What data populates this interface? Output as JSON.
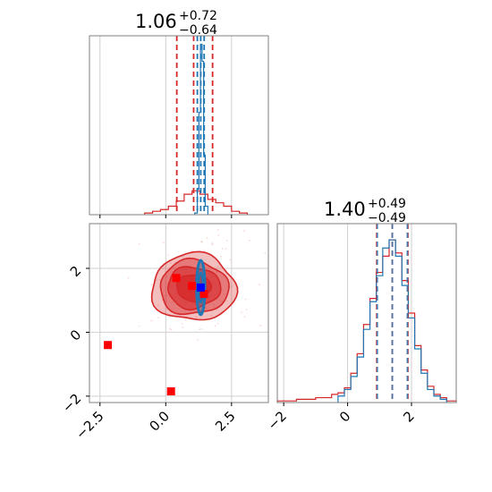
{
  "colors": {
    "red": "#d62728",
    "blue": "#1f77b4",
    "marker_red": "#ff0000",
    "marker_blue": "#0000ff",
    "grid": "#d0d0d0",
    "spine": "#7f7f7f"
  },
  "chart_data": [
    {
      "type": "line",
      "panel": "marginal-param-1",
      "title": {
        "value": "1.06",
        "upper": "+0.72",
        "lower": "−0.64"
      },
      "xlim": [
        -2.9,
        3.9
      ],
      "x_ticks": [
        -2.5,
        0.0,
        2.5
      ],
      "ylim": [
        0,
        1.05
      ],
      "grid": true,
      "series": [
        {
          "color": "#d62728",
          "histogram_edges": [
            -0.8,
            -0.5,
            -0.2,
            0.1,
            0.4,
            0.7,
            1.0,
            1.3,
            1.6,
            1.9,
            2.2,
            2.5,
            2.8,
            3.1
          ],
          "histogram_heights": [
            0.01,
            0.02,
            0.03,
            0.05,
            0.08,
            0.12,
            0.14,
            0.12,
            0.09,
            0.07,
            0.05,
            0.02,
            0.01
          ]
        },
        {
          "color": "#1f77b4",
          "histogram_edges": [
            1.1,
            1.2,
            1.26,
            1.32,
            1.38,
            1.44,
            1.5,
            1.6
          ],
          "histogram_heights": [
            0.01,
            0.15,
            0.6,
            1.0,
            0.9,
            0.35,
            0.05
          ]
        }
      ],
      "quantile_lines": [
        {
          "color": "#d62728",
          "x": [
            0.42,
            1.06,
            1.78
          ]
        },
        {
          "color": "#1f77b4",
          "x": [
            1.2,
            1.33,
            1.46
          ]
        }
      ]
    },
    {
      "type": "line",
      "panel": "marginal-param-2",
      "title": {
        "value": "1.40",
        "upper": "+0.49",
        "lower": "−0.49"
      },
      "xlim": [
        -2.2,
        3.4
      ],
      "x_ticks": [
        -2,
        0,
        2
      ],
      "ylim": [
        0,
        1.1
      ],
      "grid": true,
      "series": [
        {
          "color": "#d62728",
          "histogram_edges": [
            -2.2,
            -1.6,
            -1.0,
            -0.5,
            -0.3,
            -0.1,
            0.1,
            0.3,
            0.5,
            0.7,
            0.9,
            1.1,
            1.3,
            1.5,
            1.7,
            1.9,
            2.1,
            2.3,
            2.5,
            2.7,
            2.9,
            3.1,
            3.4
          ],
          "histogram_heights": [
            0.01,
            0.02,
            0.03,
            0.05,
            0.06,
            0.09,
            0.18,
            0.3,
            0.48,
            0.64,
            0.8,
            0.9,
            1.0,
            0.92,
            0.75,
            0.55,
            0.35,
            0.2,
            0.1,
            0.05,
            0.03,
            0.01
          ]
        },
        {
          "color": "#1f77b4",
          "histogram_edges": [
            -0.3,
            -0.1,
            0.1,
            0.3,
            0.5,
            0.7,
            0.9,
            1.1,
            1.3,
            1.5,
            1.7,
            1.9,
            2.1,
            2.3,
            2.5,
            2.7,
            2.9,
            3.1
          ],
          "histogram_heights": [
            0.04,
            0.08,
            0.16,
            0.28,
            0.45,
            0.62,
            0.78,
            0.95,
            1.0,
            0.9,
            0.72,
            0.52,
            0.33,
            0.18,
            0.08,
            0.04,
            0.02
          ]
        }
      ],
      "quantile_lines": [
        {
          "color": "#d62728",
          "x": [
            0.91,
            1.4,
            1.89
          ]
        },
        {
          "color": "#1f77b4",
          "x": [
            0.93,
            1.4,
            1.87
          ]
        }
      ]
    },
    {
      "type": "scatter",
      "panel": "joint-param-1-vs-param-2",
      "xlim": [
        -2.9,
        3.9
      ],
      "ylim": [
        -2.2,
        3.4
      ],
      "x_ticks": [
        -2.5,
        0.0,
        2.5
      ],
      "y_ticks": [
        -2,
        0,
        2
      ],
      "grid": true,
      "red_contours": {
        "center": [
          1.06,
          1.4
        ],
        "radii": [
          [
            1.6,
            1.05
          ],
          [
            1.3,
            0.85
          ],
          [
            1.0,
            0.65
          ],
          [
            0.65,
            0.42
          ]
        ],
        "fills": [
          0.3,
          0.45,
          0.6,
          0.75
        ]
      },
      "blue_contour": {
        "center": [
          1.33,
          1.4
        ],
        "radii": [
          0.16,
          0.85
        ]
      },
      "red_markers": [
        [
          0.4,
          1.7
        ],
        [
          1.0,
          1.45
        ],
        [
          1.45,
          1.2
        ],
        [
          -2.2,
          -0.4
        ],
        [
          0.2,
          -1.85
        ]
      ],
      "blue_markers": [
        [
          1.33,
          1.4
        ]
      ]
    }
  ]
}
